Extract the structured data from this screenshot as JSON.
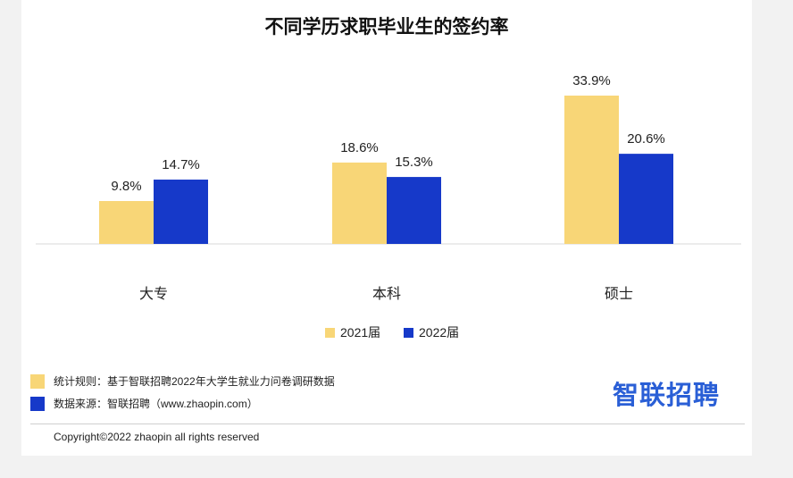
{
  "chart_data": {
    "type": "bar",
    "title": "不同学历求职毕业生的签约率",
    "categories": [
      "大专",
      "本科",
      "硕士"
    ],
    "series": [
      {
        "name": "2021届",
        "values": [
          9.8,
          18.6,
          33.9
        ],
        "labels": [
          "9.8%",
          "18.6%",
          "33.9%"
        ],
        "color": "#f8d677"
      },
      {
        "name": "2022届",
        "values": [
          14.7,
          15.3,
          20.6
        ],
        "labels": [
          "14.7%",
          "15.3%",
          "20.6%"
        ],
        "color": "#1639c9"
      }
    ],
    "unit": "%",
    "ylim": [
      0,
      36
    ],
    "grid": false,
    "legend": "bottom-center"
  },
  "footer": {
    "rule_text": "统计规则：基于智联招聘2022年大学生就业力问卷调研数据",
    "rule_color": "#f8d677",
    "source_text": "数据来源：智联招聘（www.zhaopin.com）",
    "source_color": "#1639c9",
    "copyright": "Copyright©2022 zhaopin all rights reserved",
    "logo_text": "智联招聘",
    "logo_color": "#2a5fd6"
  }
}
